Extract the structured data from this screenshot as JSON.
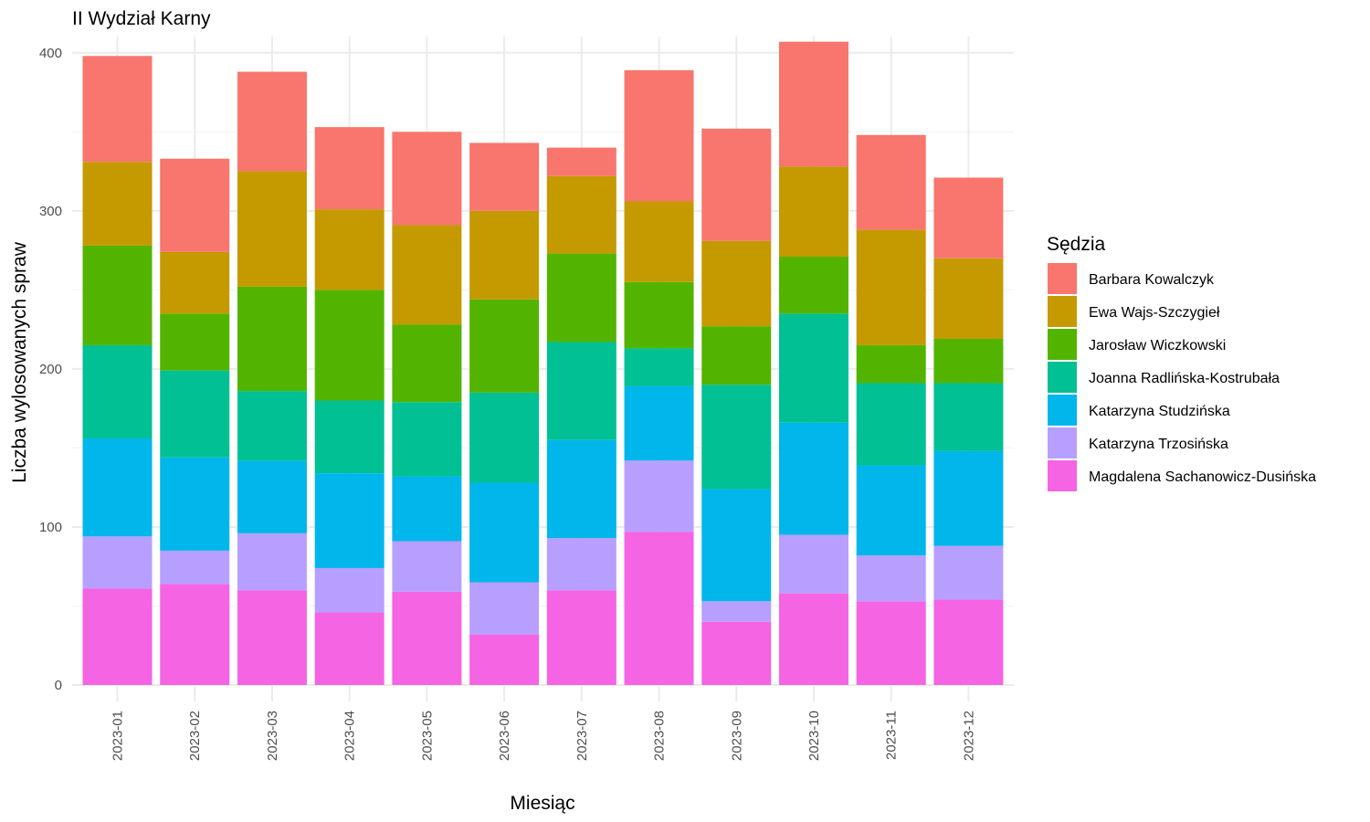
{
  "chart_data": {
    "type": "bar",
    "stacked": true,
    "title": "II Wydział Karny",
    "xlabel": "Miesiąc",
    "ylabel": "Liczba wylosowanych spraw",
    "ylim": [
      0,
      420
    ],
    "yticks": [
      0,
      100,
      200,
      300,
      400
    ],
    "grid": true,
    "legend_title": "Sędzia",
    "legend_position": "right",
    "categories": [
      "2023-01",
      "2023-02",
      "2023-03",
      "2023-04",
      "2023-05",
      "2023-06",
      "2023-07",
      "2023-08",
      "2023-09",
      "2023-10",
      "2023-11",
      "2023-12"
    ],
    "series": [
      {
        "name": "Magdalena Sachanowicz-Dusińska",
        "color": "#F564E3",
        "values": [
          61,
          64,
          60,
          46,
          59,
          32,
          60,
          97,
          40,
          58,
          53,
          54
        ]
      },
      {
        "name": "Katarzyna Trzosińska",
        "color": "#B79FFF",
        "values": [
          33,
          21,
          36,
          28,
          32,
          33,
          33,
          45,
          13,
          37,
          29,
          34
        ]
      },
      {
        "name": "Katarzyna Studzińska",
        "color": "#00B6EB",
        "values": [
          62,
          59,
          46,
          60,
          41,
          63,
          62,
          47,
          71,
          71,
          57,
          60
        ]
      },
      {
        "name": "Joanna Radlińska-Kostrubała",
        "color": "#00C094",
        "values": [
          59,
          55,
          44,
          46,
          47,
          57,
          62,
          24,
          66,
          69,
          52,
          43
        ]
      },
      {
        "name": "Jarosław Wiczkowski",
        "color": "#53B400",
        "values": [
          63,
          36,
          66,
          70,
          49,
          59,
          56,
          42,
          37,
          36,
          24,
          28
        ]
      },
      {
        "name": "Ewa Wajs-Szczygieł",
        "color": "#C49A00",
        "values": [
          53,
          39,
          73,
          51,
          63,
          56,
          49,
          51,
          54,
          57,
          73,
          51
        ]
      },
      {
        "name": "Barbara Kowalczyk",
        "color": "#F8766D",
        "values": [
          67,
          59,
          63,
          52,
          59,
          43,
          18,
          83,
          71,
          79,
          60,
          51
        ]
      }
    ],
    "legend_order": [
      "Barbara Kowalczyk",
      "Ewa Wajs-Szczygieł",
      "Jarosław Wiczkowski",
      "Joanna Radlińska-Kostrubała",
      "Katarzyna Studzińska",
      "Katarzyna Trzosińska",
      "Magdalena Sachanowicz-Dusińska"
    ]
  }
}
